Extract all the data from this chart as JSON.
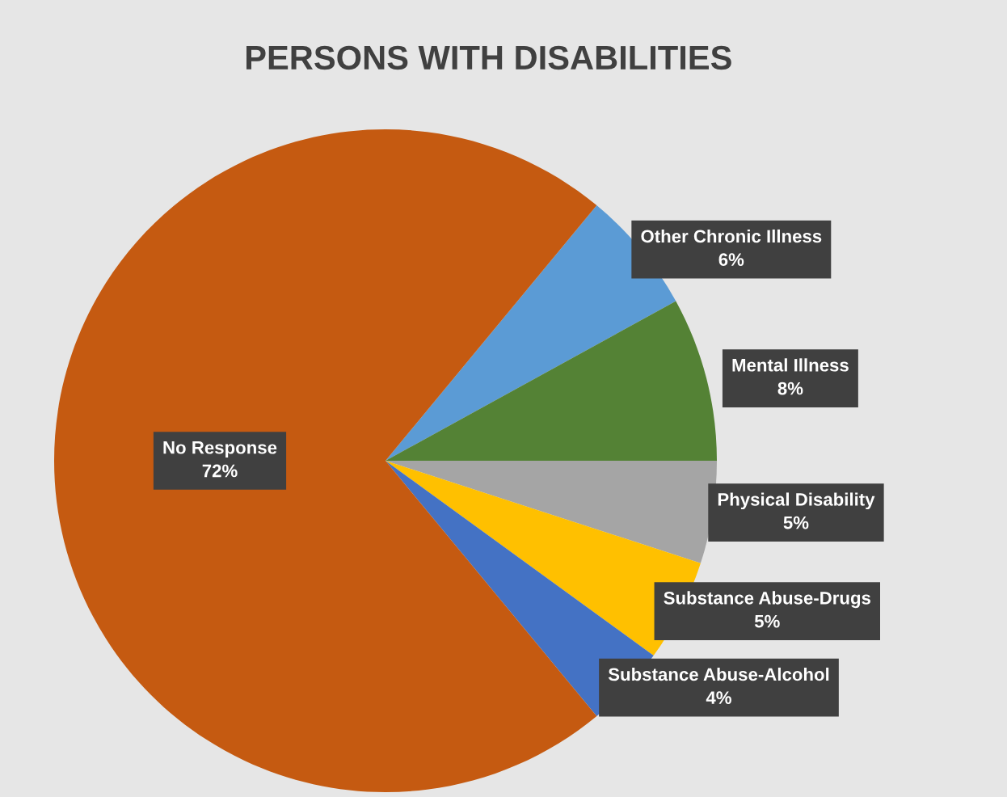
{
  "chart_data": {
    "type": "pie",
    "title": "PERSONS WITH DISABILITIES",
    "categories": [
      "Other Chronic Illness",
      "Mental Illness",
      "Physical Disability",
      "Substance Abuse-Drugs",
      "Substance Abuse-Alcohol",
      "No Response"
    ],
    "values": [
      6,
      8,
      5,
      5,
      4,
      72
    ],
    "colors": [
      "#5b9bd5",
      "#548235",
      "#a5a5a5",
      "#ffc000",
      "#4472c4",
      "#c55a11"
    ],
    "value_labels": [
      "6%",
      "8%",
      "5%",
      "5%",
      "4%",
      "72%"
    ],
    "legend": false
  }
}
